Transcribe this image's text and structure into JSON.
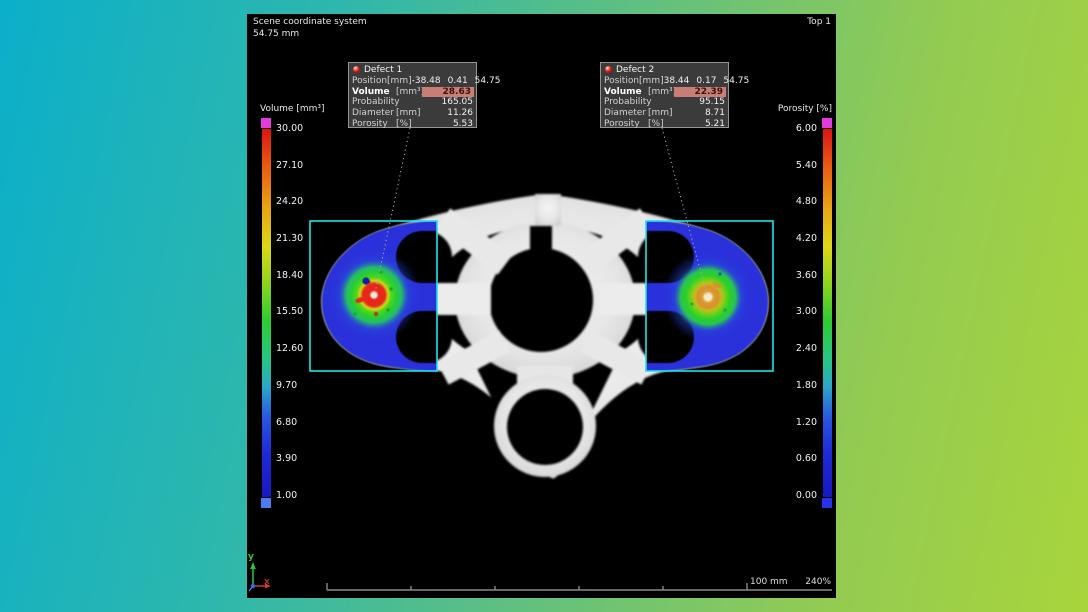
{
  "viewport": {
    "scene_label": "Scene coordinate system",
    "scene_value": "54.75 mm",
    "view_label": "Top 1",
    "ruler_label": "100 mm",
    "zoom_level": "240%",
    "axis_x": "x",
    "axis_y": "y"
  },
  "colorbars": {
    "volume": {
      "title": "Volume [mm³]",
      "ticks": [
        "30.00",
        "27.10",
        "24.20",
        "21.30",
        "18.40",
        "15.50",
        "12.60",
        "9.70",
        "6.80",
        "3.90",
        "1.00"
      ],
      "top_cap_color": "#e03bdb",
      "bottom_cap_color": "#4a7df0"
    },
    "porosity": {
      "title": "Porosity [%]",
      "ticks": [
        "6.00",
        "5.40",
        "4.80",
        "4.20",
        "3.60",
        "3.00",
        "2.40",
        "1.80",
        "1.20",
        "0.60",
        "0.00"
      ],
      "top_cap_color": "#e03bdb",
      "bottom_cap_color": "#2633e6"
    }
  },
  "defects": [
    {
      "title": "Defect 1",
      "rows": [
        {
          "label": "Position",
          "unit": "[mm]",
          "values": [
            "-38.48",
            "0.41",
            "54.75"
          ],
          "highlight": false
        },
        {
          "label": "Volume",
          "unit": "[mm³]",
          "values": [
            "28.63"
          ],
          "highlight": true
        },
        {
          "label": "Probability",
          "unit": "",
          "values": [
            "165.05"
          ],
          "highlight": false
        },
        {
          "label": "Diameter",
          "unit": "[mm]",
          "values": [
            "11.26"
          ],
          "highlight": false
        },
        {
          "label": "Porosity",
          "unit": "[%]",
          "values": [
            "5.53"
          ],
          "highlight": false
        }
      ]
    },
    {
      "title": "Defect 2",
      "rows": [
        {
          "label": "Position",
          "unit": "[mm]",
          "values": [
            "38.44",
            "0.17",
            "54.75"
          ],
          "highlight": false
        },
        {
          "label": "Volume",
          "unit": "[mm³]",
          "values": [
            "22.39"
          ],
          "highlight": true
        },
        {
          "label": "Probability",
          "unit": "",
          "values": [
            "95.15"
          ],
          "highlight": false
        },
        {
          "label": "Diameter",
          "unit": "[mm]",
          "values": [
            "8.71"
          ],
          "highlight": false
        },
        {
          "label": "Porosity",
          "unit": "[%]",
          "values": [
            "5.21"
          ],
          "highlight": false
        }
      ]
    }
  ],
  "colors": {
    "roi_box": "#1be4ee",
    "defect_highlight_bg": "#c87e74",
    "overlay_base_blue": "#2a31da",
    "background_left": "#0bafca",
    "background_right": "#a8d53c"
  }
}
